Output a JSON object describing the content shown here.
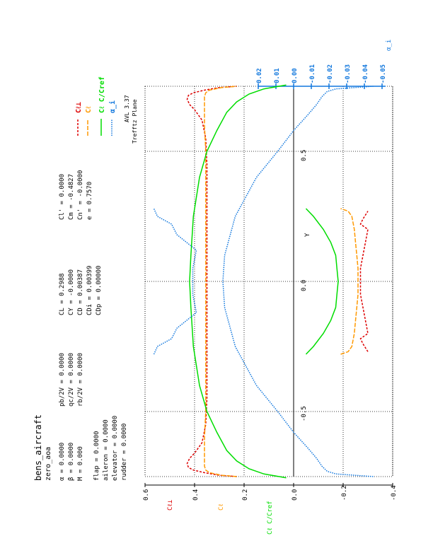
{
  "header": {
    "case_name": "bens_aircraft",
    "run_name": "zero_aoa",
    "params_left": [
      "α = 0.0000",
      "β = 0.0000",
      "M = 0.000"
    ],
    "params_mid": [
      "pb/2V = 0.0000",
      "qc/2V = 0.0000",
      "rb/2V = 0.0000"
    ],
    "params_force": [
      "CL = 0.2988",
      "CY = -0.0000",
      "CD = 0.00387",
      "CDi = 0.00399",
      "CDp = 0.00000"
    ],
    "params_mom": [
      "Cl' = 0.0000",
      "Cm = -0.4827",
      "Cn' = -0.0000",
      "e = 0.7570"
    ],
    "controls": [
      "flap     = 0.0000",
      "aileron  = 0.0000",
      "elevator = 0.0000",
      "rudder   = 0.0000"
    ]
  },
  "footer": {
    "version": "AVL 3.37",
    "plot_name": "Trefftz Plane"
  },
  "legend": [
    "Cℓ⊥",
    "Cℓ",
    "Cℓ C/Cref",
    "α_i"
  ],
  "colors": {
    "cl_perp": "#dd0000",
    "cl": "#ff9900",
    "cl_c_cref": "#00dd00",
    "alpha_i": "#1177dd",
    "axis": "#000000",
    "grid": "#000000"
  },
  "chart_data": {
    "type": "line",
    "xlabel": "Y",
    "xlim": [
      -0.75,
      0.75
    ],
    "x_ticks": [
      "-0.5",
      "0.0",
      "0.5"
    ],
    "ylim_left": [
      -0.4,
      0.6
    ],
    "y_ticks_left": [
      "0.6",
      "0.4",
      "0.2",
      "0.0",
      "-0.2",
      "-0.4"
    ],
    "y_labels_left": [
      "Cℓ⊥",
      "Cℓ",
      "Cℓ C/Cref"
    ],
    "ylim_right": [
      -0.05,
      0.02
    ],
    "y_ticks_right": [
      "0.02",
      "0.01",
      "0.00",
      "-0.01",
      "-0.02",
      "-0.03",
      "-0.04",
      "-0.05"
    ],
    "y_label_right": "α_i",
    "grid": true,
    "legend_position": "top-right",
    "series": [
      {
        "name": "Cℓ⊥",
        "group": "wing",
        "axis": "left",
        "x": [
          -0.75,
          -0.745,
          -0.735,
          -0.725,
          -0.715,
          -0.7,
          -0.68,
          -0.66,
          -0.62,
          -0.55,
          -0.45,
          -0.3,
          -0.15,
          0.0,
          0.15,
          0.3,
          0.45,
          0.55,
          0.62,
          0.66,
          0.68,
          0.7,
          0.715,
          0.725,
          0.735,
          0.745,
          0.75
        ],
        "y": [
          0.23,
          0.3,
          0.36,
          0.405,
          0.425,
          0.43,
          0.42,
          0.4,
          0.37,
          0.355,
          0.35,
          0.35,
          0.35,
          0.35,
          0.35,
          0.35,
          0.35,
          0.355,
          0.37,
          0.4,
          0.42,
          0.43,
          0.425,
          0.405,
          0.36,
          0.3,
          0.23
        ]
      },
      {
        "name": "Cℓ",
        "group": "wing",
        "axis": "left",
        "x": [
          -0.75,
          -0.745,
          -0.735,
          -0.725,
          -0.71,
          -0.69,
          -0.66,
          -0.6,
          -0.5,
          -0.35,
          -0.15,
          0.0,
          0.15,
          0.35,
          0.5,
          0.6,
          0.66,
          0.69,
          0.71,
          0.725,
          0.735,
          0.745,
          0.75
        ],
        "y": [
          0.23,
          0.29,
          0.34,
          0.355,
          0.36,
          0.36,
          0.36,
          0.36,
          0.355,
          0.355,
          0.355,
          0.355,
          0.355,
          0.355,
          0.355,
          0.36,
          0.36,
          0.36,
          0.36,
          0.355,
          0.34,
          0.29,
          0.23
        ]
      },
      {
        "name": "Cℓ C/Cref",
        "group": "wing",
        "axis": "left",
        "x": [
          -0.755,
          -0.74,
          -0.72,
          -0.69,
          -0.65,
          -0.58,
          -0.5,
          -0.4,
          -0.25,
          -0.1,
          0.0,
          0.1,
          0.25,
          0.4,
          0.5,
          0.58,
          0.65,
          0.69,
          0.72,
          0.74,
          0.755
        ],
        "y": [
          0.03,
          0.12,
          0.18,
          0.23,
          0.27,
          0.31,
          0.35,
          0.38,
          0.405,
          0.415,
          0.42,
          0.415,
          0.405,
          0.38,
          0.35,
          0.31,
          0.27,
          0.23,
          0.18,
          0.12,
          0.03
        ]
      },
      {
        "name": "α_i",
        "group": "wing",
        "axis": "right",
        "x": [
          -0.75,
          -0.74,
          -0.73,
          -0.71,
          -0.68,
          -0.64,
          -0.58,
          -0.5,
          -0.4,
          -0.25,
          -0.1,
          0.0,
          0.1,
          0.25,
          0.4,
          0.5,
          0.58,
          0.64,
          0.68,
          0.71,
          0.73,
          0.74,
          0.75
        ],
        "y": [
          -0.0445,
          -0.034,
          -0.0315,
          -0.03,
          -0.0285,
          -0.026,
          -0.022,
          -0.0175,
          -0.0115,
          -0.0055,
          -0.0025,
          -0.002,
          -0.0025,
          -0.0055,
          -0.0115,
          -0.0175,
          -0.022,
          -0.026,
          -0.0285,
          -0.03,
          -0.0315,
          -0.034,
          -0.0445
        ]
      },
      {
        "name": "Cℓ⊥",
        "group": "tail",
        "axis": "left",
        "x": [
          -0.27,
          -0.24,
          -0.22,
          -0.2,
          -0.15,
          -0.1,
          -0.05,
          0.0,
          0.05,
          0.1,
          0.15,
          0.2,
          0.22,
          0.24,
          0.27
        ],
        "y": [
          -0.3,
          -0.28,
          -0.27,
          -0.3,
          -0.29,
          -0.28,
          -0.27,
          -0.27,
          -0.27,
          -0.28,
          -0.29,
          -0.3,
          -0.27,
          -0.28,
          -0.3
        ]
      },
      {
        "name": "Cℓ",
        "group": "tail",
        "axis": "left",
        "x": [
          -0.28,
          -0.27,
          -0.25,
          -0.2,
          -0.15,
          -0.1,
          -0.05,
          0.0,
          0.05,
          0.1,
          0.15,
          0.2,
          0.25,
          0.27,
          0.28
        ],
        "y": [
          -0.19,
          -0.22,
          -0.235,
          -0.245,
          -0.25,
          -0.255,
          -0.26,
          -0.26,
          -0.26,
          -0.255,
          -0.25,
          -0.245,
          -0.235,
          -0.22,
          -0.19
        ]
      },
      {
        "name": "Cℓ C/Cref",
        "group": "tail",
        "axis": "left",
        "x": [
          -0.28,
          -0.25,
          -0.2,
          -0.15,
          -0.1,
          -0.05,
          0.0,
          0.05,
          0.1,
          0.15,
          0.2,
          0.25,
          0.28
        ],
        "y": [
          -0.05,
          -0.08,
          -0.12,
          -0.15,
          -0.17,
          -0.175,
          -0.18,
          -0.175,
          -0.17,
          -0.15,
          -0.12,
          -0.08,
          -0.05
        ]
      },
      {
        "name": "α_i",
        "group": "tail",
        "axis": "right",
        "x": [
          -0.28,
          -0.25,
          -0.22,
          -0.18,
          -0.12,
          -0.05,
          0.0,
          0.05,
          0.12,
          0.18,
          0.22,
          0.25,
          0.28
        ],
        "y": [
          0.0175,
          0.0165,
          0.0125,
          0.011,
          0.0055,
          0.0065,
          0.0065,
          0.0065,
          0.0055,
          0.011,
          0.0125,
          0.0165,
          0.0175
        ]
      }
    ]
  }
}
